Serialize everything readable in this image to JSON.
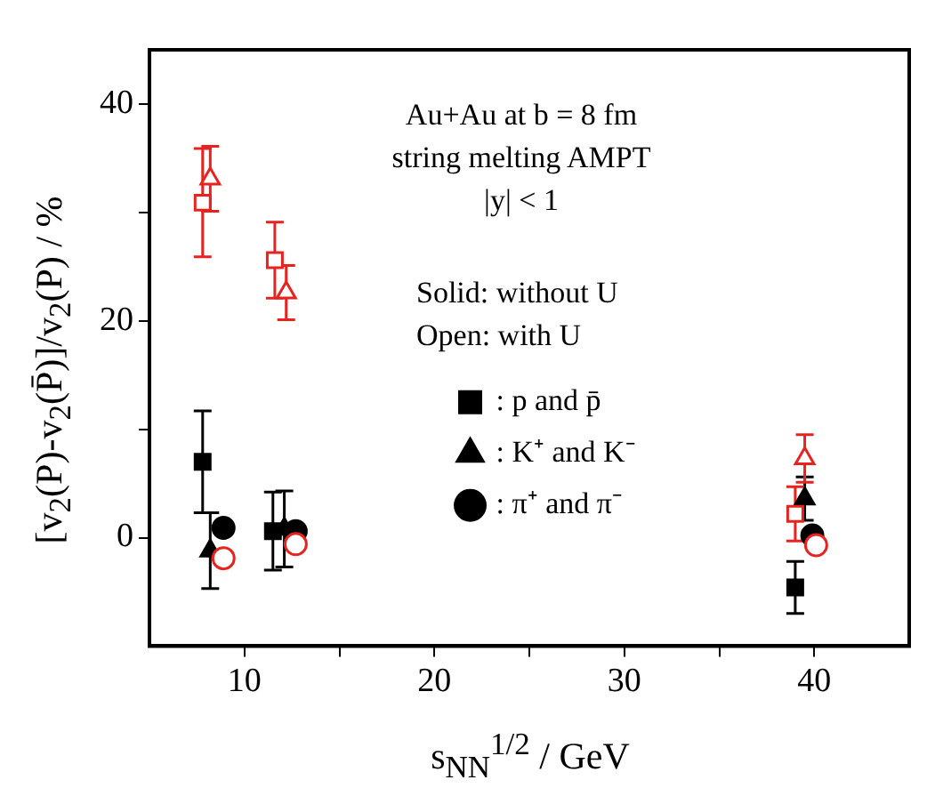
{
  "chart_data": {
    "type": "scatter",
    "xlabel": "s$_{NN}$$^{1/2}$ / GeV",
    "ylabel": "[v$_{2}$(P)-v$_{2}$(P̄)]/v$_{2}$(P) / %",
    "annotations": [
      "Au+Au at b = 8 fm",
      "string melting AMPT",
      "|y| < 1",
      "Solid: without U",
      "Open: with U"
    ],
    "xlim": [
      5,
      45
    ],
    "xticks": [
      10,
      {
        "value": 15,
        "label": null
      },
      20,
      {
        "value": 25,
        "label": null
      },
      30,
      {
        "value": 35,
        "label": null
      },
      40
    ],
    "ylim": [
      -10,
      45
    ],
    "yticks": [
      0,
      {
        "value": 10,
        "label": null
      },
      20,
      {
        "value": 30,
        "label": null
      },
      40
    ],
    "grid": false,
    "legend": "right",
    "series": [
      {
        "name": ": p and p̄",
        "color": "#000000",
        "marker": "square",
        "x": [
          7.8,
          11.5,
          39.0
        ],
        "values": [
          7.0,
          0.6,
          -4.6
        ],
        "errors": [
          4.7,
          3.6,
          2.4
        ]
      },
      {
        "name": ": K⁺ and K⁻",
        "color": "#000000",
        "marker": "triangle",
        "x": [
          8.2,
          12.1,
          39.5
        ],
        "values": [
          -1.2,
          0.8,
          3.6
        ],
        "errors": [
          3.5,
          3.5,
          2.0
        ]
      },
      {
        "name": ": π⁺ and π⁻",
        "color": "#000000",
        "marker": "circle",
        "x": [
          8.9,
          12.7,
          39.9
        ],
        "values": [
          0.9,
          0.6,
          0.2
        ]
      },
      {
        "color": "#e8231f",
        "marker": "square",
        "x": [
          7.8,
          11.6,
          39.0
        ],
        "values": [
          30.9,
          25.6,
          2.2
        ],
        "errors": [
          5.0,
          3.5,
          2.5
        ]
      },
      {
        "color": "#e8231f",
        "marker": "triangle",
        "x": [
          8.2,
          12.2,
          39.5
        ],
        "values": [
          33.1,
          22.6,
          7.3
        ],
        "errors": [
          3.0,
          2.5,
          2.2
        ]
      },
      {
        "color": "#e8231f",
        "marker": "circle",
        "x": [
          8.9,
          12.7,
          40.1
        ],
        "values": [
          -1.9,
          -0.6,
          -0.7
        ]
      }
    ]
  }
}
